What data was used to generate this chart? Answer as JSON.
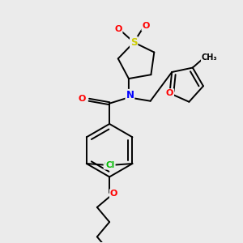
{
  "bg_color": "#ebebeb",
  "atom_colors": {
    "C": "#000000",
    "N": "#0000ff",
    "O": "#ff0000",
    "S": "#cccc00",
    "Cl": "#00bb00"
  },
  "bond_color": "#000000",
  "bond_lw": 1.4
}
